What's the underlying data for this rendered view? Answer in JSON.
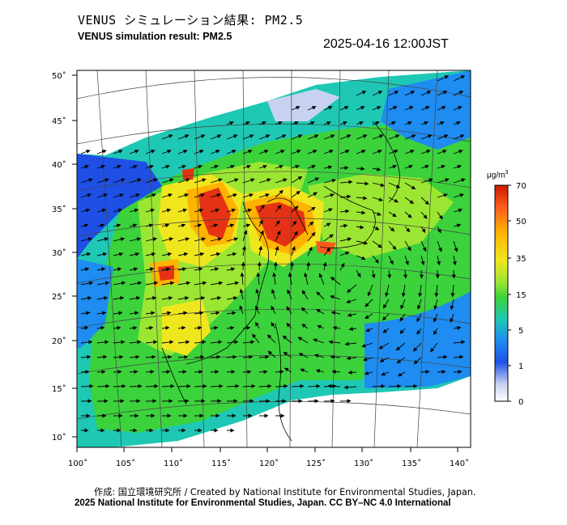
{
  "header": {
    "title_jp": "VENUS シミュレーション結果: PM2.5",
    "title_en": "VENUS simulation result: PM2.5",
    "timestamp": "2025-04-16 12:00JST"
  },
  "map": {
    "lat_ticks": [
      "50˚",
      "45˚",
      "40˚",
      "35˚",
      "30˚",
      "25˚",
      "20˚",
      "15˚",
      "10˚"
    ],
    "lon_ticks": [
      "100˚",
      "105˚",
      "110˚",
      "115˚",
      "120˚",
      "125˚",
      "130˚",
      "135˚",
      "140˚"
    ]
  },
  "colorbar": {
    "unit": "μg/m",
    "unit_sup": "3",
    "labels": [
      "70",
      "50",
      "35",
      "15",
      "5",
      "1",
      "0"
    ],
    "colors": [
      "#cc1a00",
      "#ff5a1e",
      "#ffb400",
      "#f0e61e",
      "#9be632",
      "#3cd23c",
      "#1ec8b4",
      "#1e8cf0",
      "#1e50e6",
      "#c8d2f0",
      "#ffffff"
    ]
  },
  "footer": {
    "credit": "作成: 国立環境研究所 / Created by National Institute for Environmental Studies, Japan.",
    "license": "2025 National Institute for Environmental Studies, Japan. CC BY–NC 4.0 International"
  }
}
